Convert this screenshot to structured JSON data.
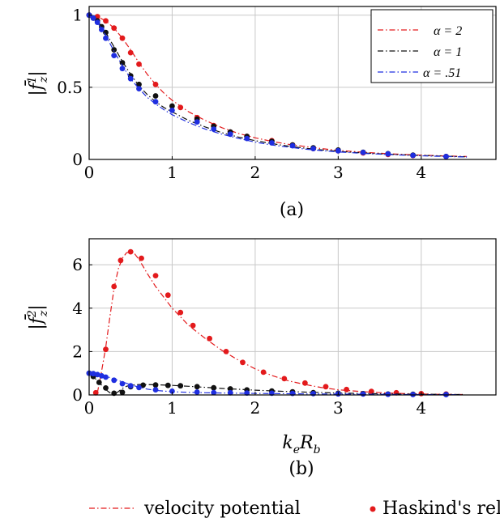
{
  "colors": {
    "alpha2": "#e31a1c",
    "alpha1": "#111111",
    "alpha051": "#1f2ee0",
    "grid": "#c8c8c8"
  },
  "panel_a": {
    "caption": "(a)",
    "ylabel_main": "|f̄",
    "ylabel_sup": "1",
    "ylabel_sub": "z",
    "ylabel_close": "|"
  },
  "panel_b": {
    "caption": "(b)",
    "ylabel_main": "|f̄",
    "ylabel_sup": "2",
    "ylabel_sub": "z",
    "ylabel_close": "|"
  },
  "xlabel": {
    "k": "k",
    "e": "e",
    "R": "R",
    "b": "b"
  },
  "legend_alpha": [
    {
      "key": "alpha2",
      "label": "α = 2"
    },
    {
      "key": "alpha1",
      "label": "α = 1"
    },
    {
      "key": "alpha051",
      "label": "α = .51"
    }
  ],
  "legend_bottom": {
    "line": "velocity potential",
    "dot": "Haskind's relation"
  },
  "chart_data": [
    {
      "type": "line",
      "title": "(a)",
      "xlabel": "k_e R_b",
      "ylabel": "|f̄_z^1|",
      "xlim": [
        0,
        4.9
      ],
      "ylim": [
        0,
        1.06
      ],
      "xticks": [
        0,
        1,
        2,
        3,
        4
      ],
      "yticks": [
        0,
        0.5,
        1
      ],
      "ytick_labels": [
        "0",
        "0.5",
        "1"
      ],
      "grid": true,
      "legend_position": "top-right",
      "series": [
        {
          "name": "α = 2",
          "color_key": "alpha2",
          "line": {
            "x": [
              0,
              0.1,
              0.2,
              0.3,
              0.4,
              0.5,
              0.6,
              0.7,
              0.8,
              0.9,
              1.0,
              1.2,
              1.4,
              1.6,
              1.8,
              2.0,
              2.2,
              2.4,
              2.6,
              2.8,
              3.0,
              3.3,
              3.6,
              3.9,
              4.2,
              4.55
            ],
            "y": [
              1.0,
              0.99,
              0.96,
              0.91,
              0.84,
              0.76,
              0.67,
              0.59,
              0.52,
              0.46,
              0.41,
              0.33,
              0.27,
              0.22,
              0.18,
              0.15,
              0.125,
              0.105,
              0.09,
              0.075,
              0.063,
              0.05,
              0.04,
              0.032,
              0.026,
              0.02
            ]
          },
          "points": {
            "x": [
              0.0,
              0.1,
              0.2,
              0.3,
              0.4,
              0.5,
              0.6,
              0.8,
              1.1,
              1.3,
              1.5,
              1.7,
              1.9,
              2.2,
              2.45,
              2.7,
              3.0,
              3.3,
              3.6,
              3.9,
              4.3
            ],
            "y": [
              1.0,
              0.99,
              0.96,
              0.91,
              0.84,
              0.74,
              0.66,
              0.52,
              0.36,
              0.29,
              0.235,
              0.19,
              0.16,
              0.13,
              0.1,
              0.075,
              0.06,
              0.045,
              0.035,
              0.027,
              0.02
            ]
          }
        },
        {
          "name": "α = 1",
          "color_key": "alpha1",
          "line": {
            "x": [
              0,
              0.1,
              0.2,
              0.3,
              0.4,
              0.5,
              0.6,
              0.7,
              0.8,
              0.9,
              1.0,
              1.2,
              1.4,
              1.6,
              1.8,
              2.0,
              2.2,
              2.4,
              2.6,
              2.8,
              3.0,
              3.3,
              3.6,
              3.9,
              4.2,
              4.55
            ],
            "y": [
              1.0,
              0.96,
              0.88,
              0.78,
              0.68,
              0.59,
              0.51,
              0.45,
              0.4,
              0.36,
              0.33,
              0.27,
              0.225,
              0.185,
              0.155,
              0.13,
              0.11,
              0.092,
              0.078,
              0.066,
              0.056,
              0.045,
              0.036,
              0.029,
              0.024,
              0.018
            ]
          },
          "points": {
            "x": [
              0.0,
              0.05,
              0.1,
              0.15,
              0.2,
              0.3,
              0.4,
              0.5,
              0.6,
              0.8,
              1.0,
              1.3,
              1.5,
              1.7,
              1.9,
              2.2,
              2.45,
              2.7,
              3.0,
              3.3,
              3.6,
              3.9,
              4.3
            ],
            "y": [
              1.0,
              0.98,
              0.96,
              0.92,
              0.88,
              0.76,
              0.67,
              0.58,
              0.52,
              0.44,
              0.37,
              0.28,
              0.23,
              0.19,
              0.16,
              0.125,
              0.1,
              0.08,
              0.065,
              0.05,
              0.04,
              0.03,
              0.02
            ]
          }
        },
        {
          "name": "α = .51",
          "color_key": "alpha051",
          "line": {
            "x": [
              0,
              0.1,
              0.2,
              0.3,
              0.4,
              0.5,
              0.6,
              0.7,
              0.8,
              0.9,
              1.0,
              1.2,
              1.4,
              1.6,
              1.8,
              2.0,
              2.2,
              2.4,
              2.6,
              2.8,
              3.0,
              3.3,
              3.6,
              3.9,
              4.2,
              4.55
            ],
            "y": [
              1.0,
              0.95,
              0.86,
              0.75,
              0.65,
              0.56,
              0.49,
              0.43,
              0.385,
              0.345,
              0.31,
              0.255,
              0.21,
              0.175,
              0.145,
              0.12,
              0.1,
              0.085,
              0.072,
              0.061,
              0.052,
              0.042,
              0.034,
              0.027,
              0.022,
              0.017
            ]
          },
          "points": {
            "x": [
              0.0,
              0.05,
              0.1,
              0.15,
              0.2,
              0.3,
              0.4,
              0.5,
              0.6,
              0.8,
              1.0,
              1.3,
              1.5,
              1.7,
              1.9,
              2.2,
              2.45,
              2.7,
              3.0,
              3.3,
              3.6,
              3.9,
              4.3
            ],
            "y": [
              1.0,
              0.98,
              0.95,
              0.9,
              0.84,
              0.72,
              0.63,
              0.56,
              0.49,
              0.4,
              0.34,
              0.26,
              0.21,
              0.175,
              0.145,
              0.115,
              0.095,
              0.075,
              0.06,
              0.048,
              0.038,
              0.028,
              0.02
            ]
          }
        }
      ]
    },
    {
      "type": "line",
      "title": "(b)",
      "xlabel": "k_e R_b",
      "ylabel": "|f̄_z^2|",
      "xlim": [
        0,
        4.9
      ],
      "ylim": [
        0,
        7.2
      ],
      "xticks": [
        0,
        1,
        2,
        3,
        4
      ],
      "yticks": [
        0,
        2,
        4,
        6
      ],
      "ytick_labels": [
        "0",
        "2",
        "4",
        "6"
      ],
      "grid": true,
      "series": [
        {
          "name": "α = 2",
          "color_key": "alpha2",
          "line": {
            "x": [
              0.1,
              0.15,
              0.2,
              0.25,
              0.3,
              0.35,
              0.4,
              0.45,
              0.5,
              0.55,
              0.6,
              0.7,
              0.8,
              0.9,
              1.0,
              1.1,
              1.2,
              1.4,
              1.6,
              1.8,
              2.0,
              2.2,
              2.4,
              2.6,
              2.8,
              3.0,
              3.3,
              3.6,
              3.9,
              4.2,
              4.5
            ],
            "y": [
              0.1,
              1.1,
              2.2,
              3.6,
              4.9,
              5.8,
              6.3,
              6.55,
              6.6,
              6.5,
              6.25,
              5.6,
              5.0,
              4.5,
              4.0,
              3.6,
              3.2,
              2.6,
              2.05,
              1.6,
              1.2,
              0.9,
              0.65,
              0.48,
              0.34,
              0.24,
              0.15,
              0.09,
              0.05,
              0.03,
              0.02
            ]
          },
          "points": {
            "x": [
              0.08,
              0.2,
              0.3,
              0.38,
              0.5,
              0.63,
              0.8,
              0.95,
              1.1,
              1.25,
              1.45,
              1.65,
              1.85,
              2.1,
              2.35,
              2.6,
              2.85,
              3.1,
              3.4,
              3.7,
              4.0,
              4.3
            ],
            "y": [
              0.1,
              2.1,
              5.0,
              6.2,
              6.6,
              6.3,
              5.5,
              4.6,
              3.8,
              3.2,
              2.6,
              2.0,
              1.5,
              1.05,
              0.75,
              0.55,
              0.38,
              0.25,
              0.16,
              0.1,
              0.06,
              0.04
            ]
          }
        },
        {
          "name": "α = 1",
          "color_key": "alpha1",
          "line": {
            "x": [
              0,
              0.05,
              0.1,
              0.15,
              0.2,
              0.25,
              0.3,
              0.35,
              0.4,
              0.45,
              0.5,
              0.6,
              0.8,
              1.0,
              1.2,
              1.4,
              1.6,
              1.8,
              2.0,
              2.3,
              2.6,
              3.0,
              3.4,
              3.8,
              4.2,
              4.5
            ],
            "y": [
              1.0,
              0.85,
              0.65,
              0.45,
              0.25,
              0.1,
              0.02,
              0.15,
              0.3,
              0.4,
              0.45,
              0.48,
              0.47,
              0.44,
              0.4,
              0.35,
              0.3,
              0.26,
              0.22,
              0.17,
              0.13,
              0.09,
              0.06,
              0.04,
              0.025,
              0.02
            ]
          },
          "points": {
            "x": [
              0.0,
              0.05,
              0.12,
              0.2,
              0.3,
              0.4,
              0.5,
              0.65,
              0.8,
              0.95,
              1.1,
              1.3,
              1.5,
              1.7,
              1.9,
              2.2,
              2.45,
              2.7,
              3.0,
              3.3,
              3.6,
              3.9,
              4.3
            ],
            "y": [
              1.0,
              0.85,
              0.58,
              0.32,
              0.08,
              0.12,
              0.38,
              0.45,
              0.46,
              0.44,
              0.42,
              0.38,
              0.33,
              0.28,
              0.23,
              0.18,
              0.14,
              0.11,
              0.08,
              0.06,
              0.04,
              0.03,
              0.02
            ]
          }
        },
        {
          "name": "α = .51",
          "color_key": "alpha051",
          "line": {
            "x": [
              0,
              0.1,
              0.2,
              0.3,
              0.4,
              0.5,
              0.6,
              0.7,
              0.8,
              1.0,
              1.2,
              1.4,
              1.6,
              1.8,
              2.0,
              2.3,
              2.6,
              3.0,
              3.4,
              3.8,
              4.2,
              4.5
            ],
            "y": [
              1.0,
              0.95,
              0.86,
              0.74,
              0.6,
              0.47,
              0.36,
              0.27,
              0.21,
              0.15,
              0.12,
              0.1,
              0.09,
              0.08,
              0.07,
              0.06,
              0.05,
              0.04,
              0.03,
              0.02,
              0.015,
              0.01
            ]
          },
          "points": {
            "x": [
              0.0,
              0.05,
              0.1,
              0.15,
              0.2,
              0.3,
              0.4,
              0.5,
              0.6,
              0.8,
              1.0,
              1.3,
              1.5,
              1.7,
              1.9,
              2.2,
              2.45,
              2.7,
              3.0,
              3.3,
              3.6,
              3.9,
              4.3
            ],
            "y": [
              1.0,
              0.98,
              0.94,
              0.88,
              0.82,
              0.68,
              0.52,
              0.42,
              0.34,
              0.24,
              0.17,
              0.13,
              0.11,
              0.1,
              0.09,
              0.08,
              0.07,
              0.06,
              0.05,
              0.04,
              0.03,
              0.02,
              0.02
            ]
          }
        }
      ]
    }
  ]
}
